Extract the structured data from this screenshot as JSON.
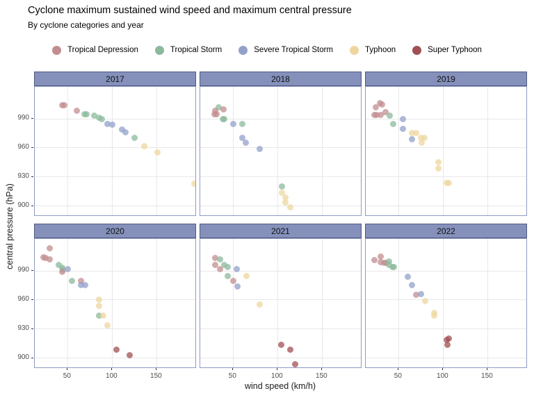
{
  "chart_data": {
    "type": "scatter",
    "title": "Cyclone maximum sustained wind speed and maximum central pressure",
    "subtitle": "By cyclone categories and year",
    "xlabel": "wind speed (km/h)",
    "ylabel": "central pressure (hPa)",
    "x_ticks": [
      50,
      100,
      150
    ],
    "y_ticks": [
      990,
      960,
      930,
      900
    ],
    "x_domain": [
      13,
      195
    ],
    "y_domain": [
      889,
      1023
    ],
    "grid": "major-only",
    "legend_position": "top-center",
    "categories": [
      {
        "id": "td",
        "label": "Tropical Depression",
        "color": "#c18e90"
      },
      {
        "id": "ts",
        "label": "Tropical Storm",
        "color": "#8cba9c"
      },
      {
        "id": "sts",
        "label": "Severe Tropical Storm",
        "color": "#93a0ca"
      },
      {
        "id": "ty",
        "label": "Typhoon",
        "color": "#edd79f"
      },
      {
        "id": "st",
        "label": "Super Typhoon",
        "color": "#a05053"
      }
    ],
    "facets": [
      {
        "year": "2017",
        "points": [
          [
            44,
            1004,
            "td"
          ],
          [
            46,
            1004,
            "td"
          ],
          [
            60,
            998,
            "td"
          ],
          [
            69,
            995,
            "ts"
          ],
          [
            71,
            995,
            "ts"
          ],
          [
            80,
            993,
            "ts"
          ],
          [
            85,
            991,
            "ts"
          ],
          [
            88,
            990,
            "ts"
          ],
          [
            95,
            985,
            "sts"
          ],
          [
            100,
            984,
            "sts"
          ],
          [
            111,
            979,
            "sts"
          ],
          [
            115,
            976,
            "sts"
          ],
          [
            125,
            970,
            "ts"
          ],
          [
            136,
            962,
            "ty"
          ],
          [
            151,
            955,
            "ty"
          ],
          [
            192,
            923,
            "ty"
          ]
        ]
      },
      {
        "year": "2018",
        "points": [
          [
            34,
            1002,
            "ts"
          ],
          [
            39,
            1000,
            "td"
          ],
          [
            30,
            998,
            "td"
          ],
          [
            29,
            995,
            "td"
          ],
          [
            31,
            995,
            "td"
          ],
          [
            38,
            990,
            "ts"
          ],
          [
            40,
            990,
            "ts"
          ],
          [
            50,
            985,
            "sts"
          ],
          [
            60,
            985,
            "ts"
          ],
          [
            60,
            970,
            "sts"
          ],
          [
            64,
            965,
            "sts"
          ],
          [
            80,
            959,
            "sts"
          ],
          [
            105,
            920,
            "ts"
          ],
          [
            105,
            914,
            "ty"
          ],
          [
            109,
            909,
            "ty"
          ],
          [
            109,
            904,
            "ty"
          ],
          [
            114,
            899,
            "ty"
          ]
        ]
      },
      {
        "year": "2019",
        "points": [
          [
            29,
            1006,
            "td"
          ],
          [
            31,
            1005,
            "td"
          ],
          [
            24,
            1002,
            "td"
          ],
          [
            35,
            997,
            "td"
          ],
          [
            23,
            994,
            "td"
          ],
          [
            25,
            994,
            "td"
          ],
          [
            30,
            994,
            "td"
          ],
          [
            40,
            993,
            "ts"
          ],
          [
            55,
            990,
            "sts"
          ],
          [
            44,
            985,
            "ts"
          ],
          [
            55,
            980,
            "sts"
          ],
          [
            65,
            975,
            "ty"
          ],
          [
            70,
            975,
            "ty"
          ],
          [
            65,
            969,
            "sts"
          ],
          [
            75,
            970,
            "ty"
          ],
          [
            79,
            970,
            "ty"
          ],
          [
            76,
            965,
            "ty"
          ],
          [
            95,
            945,
            "ty"
          ],
          [
            95,
            939,
            "ty"
          ],
          [
            104,
            924,
            "ty"
          ],
          [
            106,
            924,
            "ty"
          ]
        ]
      },
      {
        "year": "2020",
        "points": [
          [
            30,
            1013,
            "td"
          ],
          [
            23,
            1004,
            "td"
          ],
          [
            25,
            1003,
            "td"
          ],
          [
            30,
            1002,
            "td"
          ],
          [
            40,
            996,
            "ts"
          ],
          [
            44,
            993,
            "ts"
          ],
          [
            45,
            991,
            "ts"
          ],
          [
            50,
            992,
            "sts"
          ],
          [
            44,
            989,
            "td"
          ],
          [
            55,
            980,
            "ts"
          ],
          [
            65,
            980,
            "td"
          ],
          [
            65,
            975,
            "sts"
          ],
          [
            70,
            975,
            "sts"
          ],
          [
            85,
            960,
            "ty"
          ],
          [
            85,
            954,
            "ty"
          ],
          [
            85,
            944,
            "ts"
          ],
          [
            90,
            944,
            "ty"
          ],
          [
            95,
            934,
            "ty"
          ],
          [
            105,
            909,
            "st"
          ],
          [
            120,
            903,
            "st"
          ]
        ]
      },
      {
        "year": "2021",
        "points": [
          [
            30,
            1003,
            "td"
          ],
          [
            35,
            1002,
            "ts"
          ],
          [
            30,
            996,
            "td"
          ],
          [
            40,
            996,
            "ts"
          ],
          [
            44,
            994,
            "ts"
          ],
          [
            35,
            992,
            "td"
          ],
          [
            54,
            992,
            "sts"
          ],
          [
            44,
            985,
            "ts"
          ],
          [
            65,
            985,
            "ty"
          ],
          [
            50,
            980,
            "td"
          ],
          [
            55,
            974,
            "sts"
          ],
          [
            80,
            955,
            "ty"
          ],
          [
            104,
            914,
            "st"
          ],
          [
            114,
            909,
            "st"
          ],
          [
            120,
            894,
            "st"
          ]
        ]
      },
      {
        "year": "2022",
        "points": [
          [
            30,
            1005,
            "td"
          ],
          [
            23,
            1001,
            "td"
          ],
          [
            30,
            999,
            "td"
          ],
          [
            34,
            998,
            "td"
          ],
          [
            36,
            998,
            "td"
          ],
          [
            39,
            1000,
            "ts"
          ],
          [
            39,
            996,
            "ts"
          ],
          [
            43,
            994,
            "ts"
          ],
          [
            45,
            994,
            "ts"
          ],
          [
            60,
            984,
            "sts"
          ],
          [
            65,
            975,
            "sts"
          ],
          [
            70,
            965,
            "td"
          ],
          [
            75,
            966,
            "sts"
          ],
          [
            80,
            959,
            "ty"
          ],
          [
            90,
            947,
            "ty"
          ],
          [
            90,
            944,
            "ty"
          ],
          [
            104,
            919,
            "st"
          ],
          [
            106,
            920,
            "st"
          ],
          [
            105,
            914,
            "st"
          ]
        ]
      }
    ]
  }
}
